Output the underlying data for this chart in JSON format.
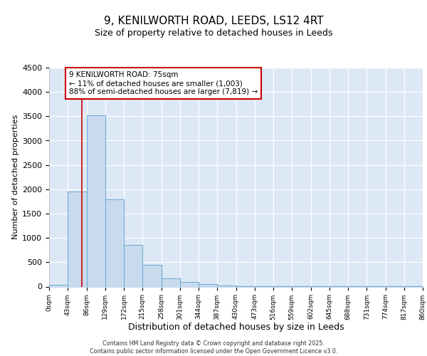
{
  "title1": "9, KENILWORTH ROAD, LEEDS, LS12 4RT",
  "title2": "Size of property relative to detached houses in Leeds",
  "xlabel": "Distribution of detached houses by size in Leeds",
  "ylabel": "Number of detached properties",
  "bin_edges": [
    0,
    43,
    86,
    129,
    172,
    215,
    258,
    301,
    344,
    387,
    430,
    473,
    516,
    559,
    602,
    645,
    688,
    731,
    774,
    817,
    860
  ],
  "bar_heights": [
    30,
    1950,
    3520,
    1800,
    850,
    450,
    175,
    100,
    50,
    25,
    10,
    5,
    3,
    3,
    2,
    2,
    2,
    2,
    2,
    2
  ],
  "bar_color": "#c8daee",
  "bar_edge_color": "#6aaad4",
  "vline_x": 75,
  "vline_color": "#cc0000",
  "annotation_line1": "9 KENILWORTH ROAD: 75sqm",
  "annotation_line2": "← 11% of detached houses are smaller (1,003)",
  "annotation_line3": "88% of semi-detached houses are larger (7,819) →",
  "annotation_border_color": "#cc0000",
  "ylim_max": 4500,
  "yticks": [
    0,
    500,
    1000,
    1500,
    2000,
    2500,
    3000,
    3500,
    4000,
    4500
  ],
  "background_color": "#dce8f5",
  "grid_color": "#ffffff",
  "footer1": "Contains HM Land Registry data © Crown copyright and database right 2025.",
  "footer2": "Contains public sector information licensed under the Open Government Licence v3.0."
}
